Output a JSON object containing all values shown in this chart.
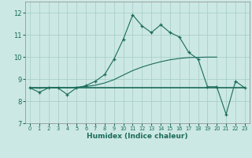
{
  "xlabel": "Humidex (Indice chaleur)",
  "x_values": [
    0,
    1,
    2,
    3,
    4,
    5,
    6,
    7,
    8,
    9,
    10,
    11,
    12,
    13,
    14,
    15,
    16,
    17,
    18,
    19,
    20,
    21,
    22,
    23
  ],
  "line1_y": [
    8.6,
    8.4,
    8.6,
    8.6,
    8.3,
    8.6,
    8.7,
    8.9,
    9.2,
    9.9,
    10.8,
    11.9,
    11.4,
    11.1,
    11.45,
    11.1,
    10.9,
    10.2,
    9.9,
    8.65,
    8.65,
    7.4,
    8.9,
    8.6
  ],
  "line2_y": [
    8.6,
    8.6,
    8.6,
    8.6,
    8.6,
    8.6,
    8.6,
    8.6,
    8.6,
    8.6,
    8.6,
    8.6,
    8.6,
    8.6,
    8.6,
    8.6,
    8.6,
    8.6,
    8.6,
    8.6,
    8.6,
    8.6,
    8.6,
    8.6
  ],
  "line3_y": [
    8.6,
    8.58,
    8.6,
    8.62,
    8.6,
    8.63,
    8.66,
    8.72,
    8.82,
    8.97,
    9.18,
    9.38,
    9.54,
    9.67,
    9.78,
    9.87,
    9.93,
    9.97,
    9.98,
    9.99,
    9.99,
    null,
    null,
    null
  ],
  "line_color": "#1a6b5a",
  "bg_color": "#cce8e4",
  "grid_color": "#aacfcb",
  "ylim": [
    7.0,
    12.5
  ],
  "xlim": [
    -0.5,
    23.5
  ],
  "yticks": [
    7,
    8,
    9,
    10,
    11,
    12
  ],
  "xticks": [
    0,
    1,
    2,
    3,
    4,
    5,
    6,
    7,
    8,
    9,
    10,
    11,
    12,
    13,
    14,
    15,
    16,
    17,
    18,
    19,
    20,
    21,
    22,
    23
  ]
}
